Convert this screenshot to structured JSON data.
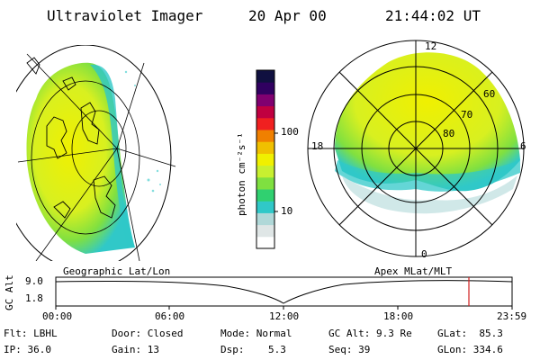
{
  "header": {
    "instrument": "Ultraviolet Imager",
    "date": "20 Apr 00",
    "time": "21:44:02 UT"
  },
  "colorbar": {
    "unit_label": "photon cm⁻²s⁻¹",
    "tick_100": "100",
    "tick_10": "10",
    "colors": [
      "#ffffff",
      "#dfe6e6",
      "#b0d8d8",
      "#30c8c8",
      "#30d070",
      "#7fe040",
      "#c8f030",
      "#f0f000",
      "#f0c000",
      "#f08000",
      "#f02020",
      "#c00040",
      "#800070",
      "#300060",
      "#101040"
    ]
  },
  "polar": {
    "mlt_12": "12",
    "mlt_18": "18",
    "mlt_6": "6",
    "mlt_0": "0",
    "lat_60": "60",
    "lat_70": "70",
    "lat_80": "80"
  },
  "projections": {
    "left_label": "Geographic Lat/Lon",
    "right_label": "Apex MLat/MLT"
  },
  "timeline": {
    "ylabel": "GC Alt",
    "y_top": "9.0",
    "y_bottom": "1.8",
    "ticks": [
      "00:00",
      "06:00",
      "12:00",
      "18:00",
      "23:59"
    ],
    "marker_color": "#d02020"
  },
  "status": {
    "flt": "Flt: LBHL",
    "door": "Door: Closed",
    "mode": "Mode: Normal",
    "gc_alt": "GC Alt: 9.3 Re",
    "glat": "GLat:  85.3",
    "ip": "IP: 36.0",
    "gain": "Gain: 13",
    "dsp": "Dsp:    5.3",
    "seq": "Seq: 39",
    "glon": "GLon: 334.6"
  }
}
